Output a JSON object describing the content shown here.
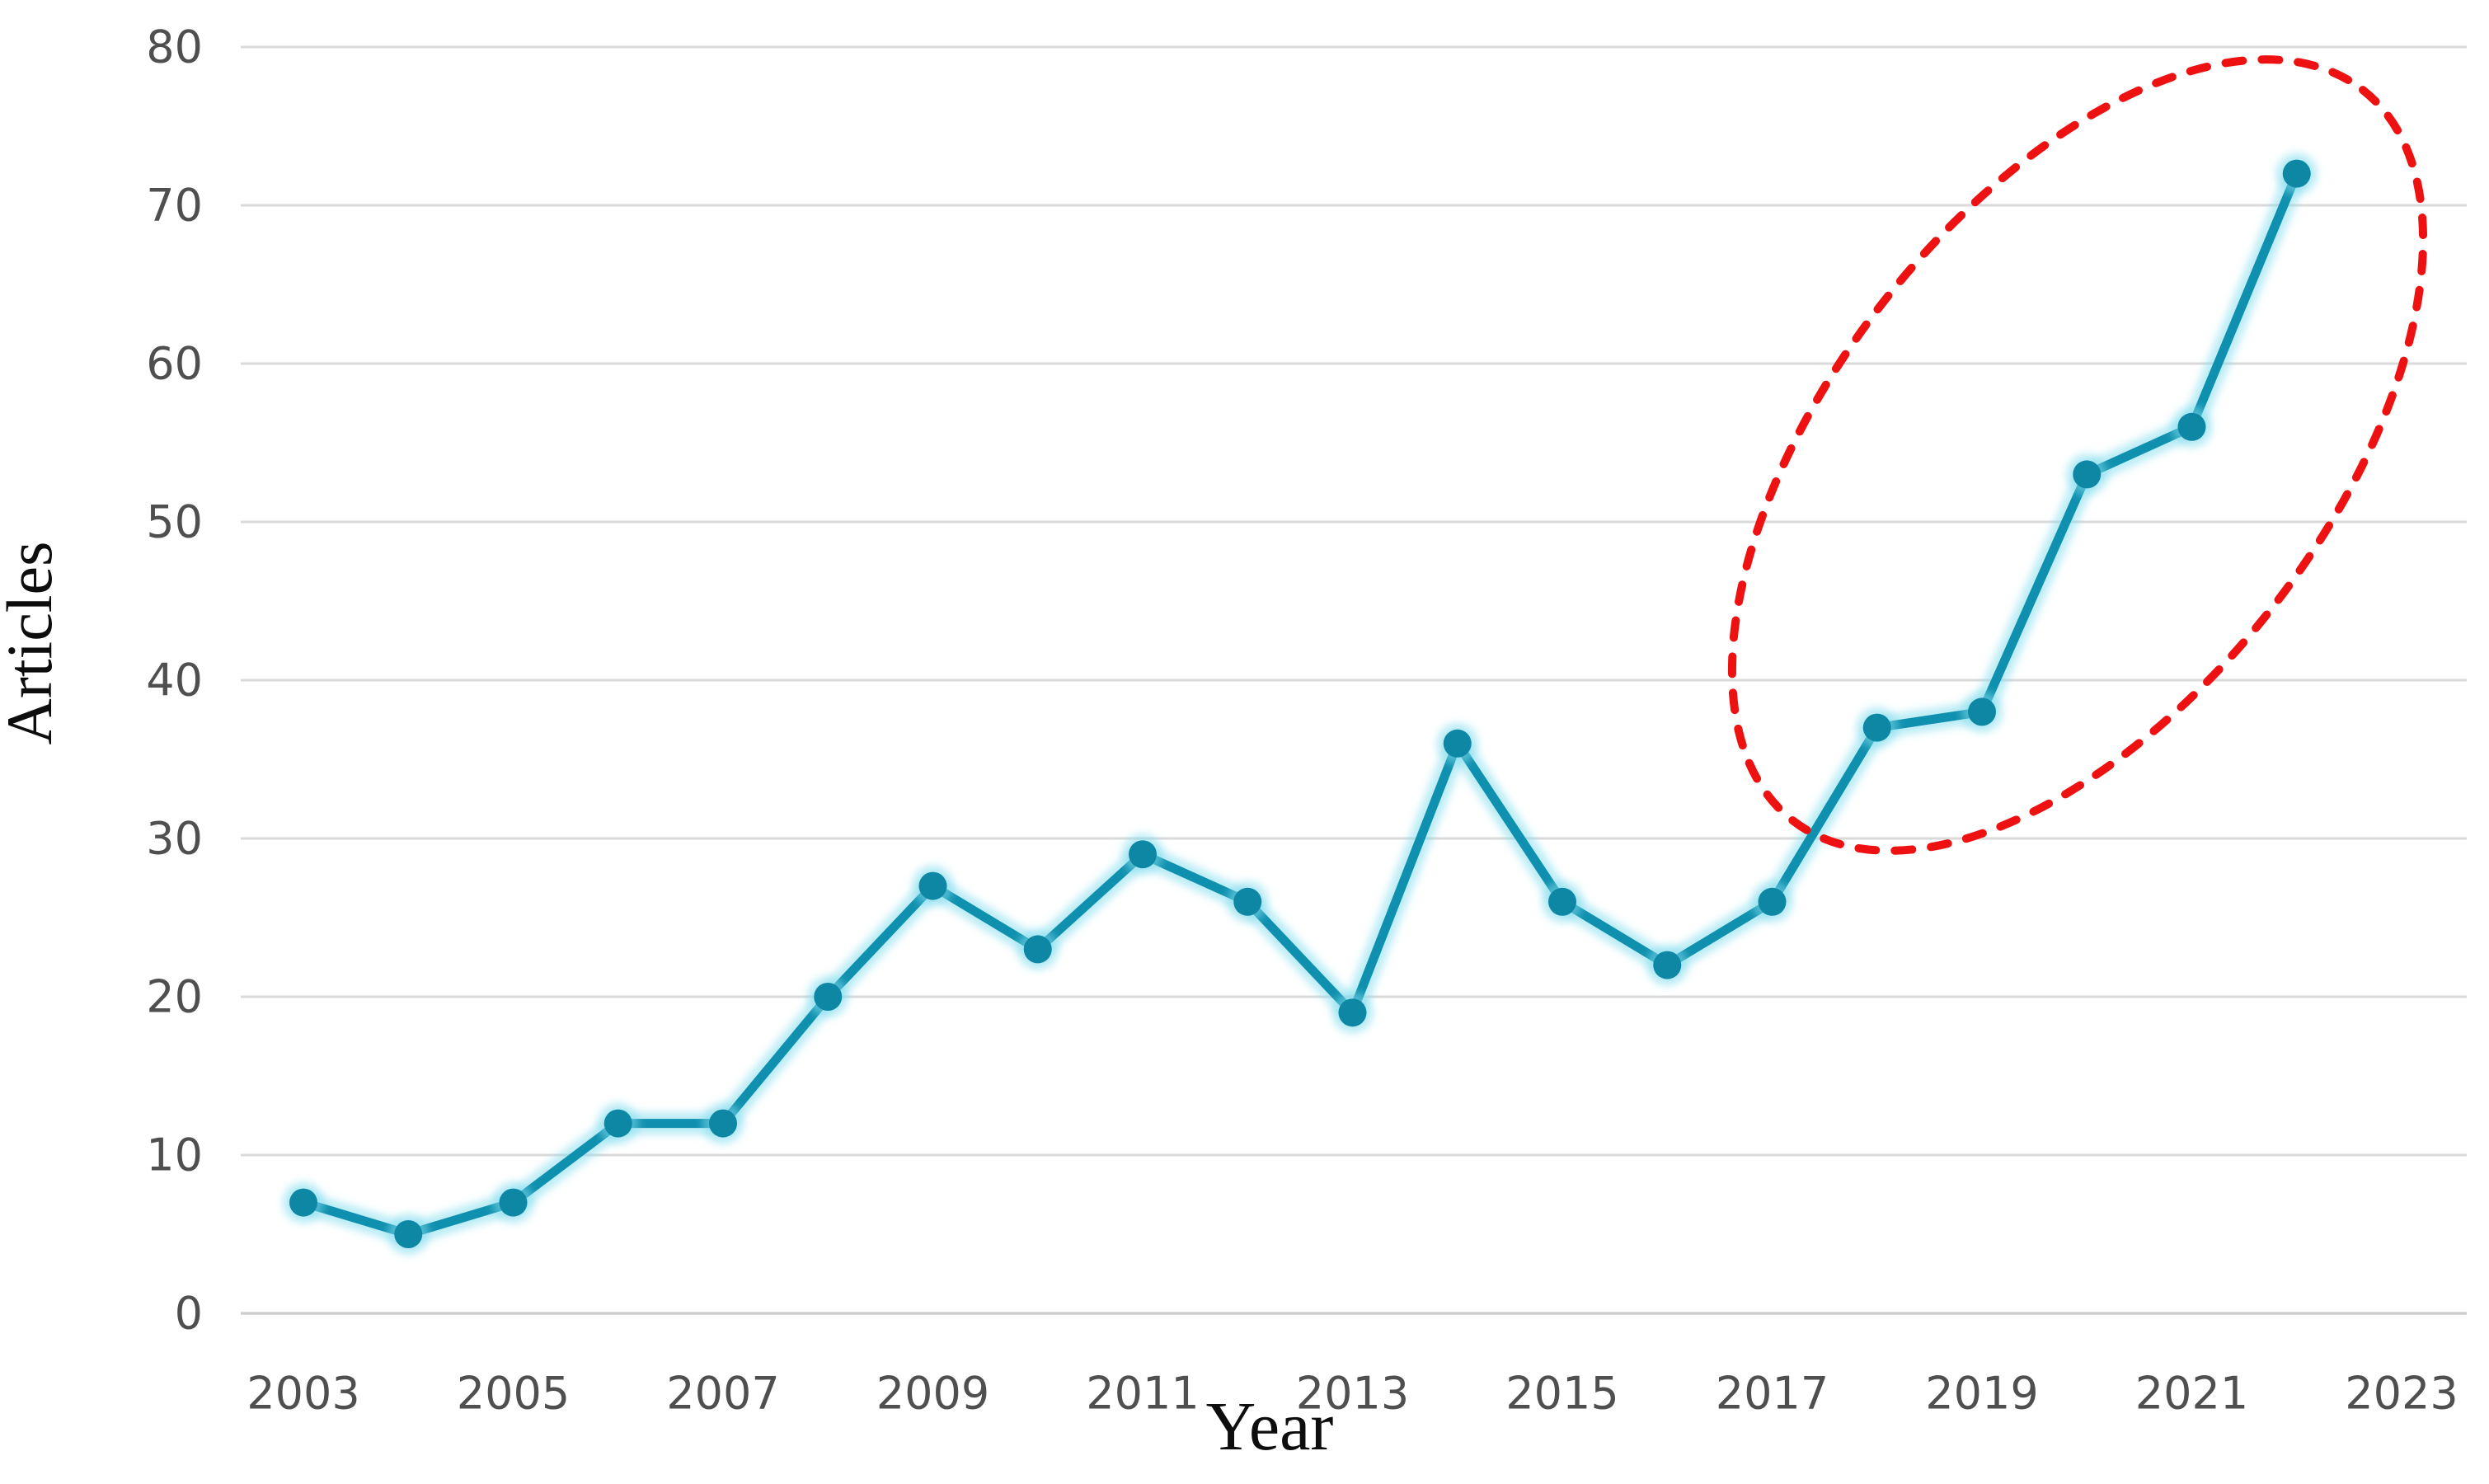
{
  "figure": {
    "background": "#ffffff",
    "x_axis_title": "Year",
    "y_axis_title": "Articles"
  },
  "chart_data": {
    "type": "line",
    "title": "",
    "xlabel": "Year",
    "ylabel": "Articles",
    "x": [
      2003,
      2004,
      2005,
      2006,
      2007,
      2008,
      2009,
      2010,
      2011,
      2012,
      2013,
      2014,
      2015,
      2016,
      2017,
      2018,
      2019,
      2020,
      2021,
      2022
    ],
    "series": [
      {
        "name": "Articles",
        "values": [
          7,
          5,
          7,
          12,
          12,
          20,
          27,
          23,
          29,
          26,
          19,
          36,
          26,
          22,
          26,
          37,
          38,
          53,
          56,
          72
        ]
      }
    ],
    "ylim": [
      0,
      80
    ],
    "yticks": [
      0,
      10,
      20,
      30,
      40,
      50,
      60,
      70,
      80
    ],
    "xticks": [
      2003,
      2005,
      2007,
      2009,
      2011,
      2013,
      2015,
      2017,
      2019,
      2021,
      2023
    ],
    "grid": "horizontal",
    "legend_position": "none",
    "colors": {
      "line": "#0f90ae",
      "marker": "#0e87a5",
      "halo": "rgba(130,221,238,0.55)",
      "gridline": "#dadada",
      "baseline": "#cfcfcf",
      "tick_label": "#4f4f4f",
      "axis_title": "#0d0d0d",
      "annotation": "#ee1111"
    },
    "annotation": {
      "type": "dashed-ellipse",
      "meaning": "highlight of rapid growth period",
      "years_range": [
        2018,
        2022
      ],
      "color": "#ee1111"
    }
  }
}
